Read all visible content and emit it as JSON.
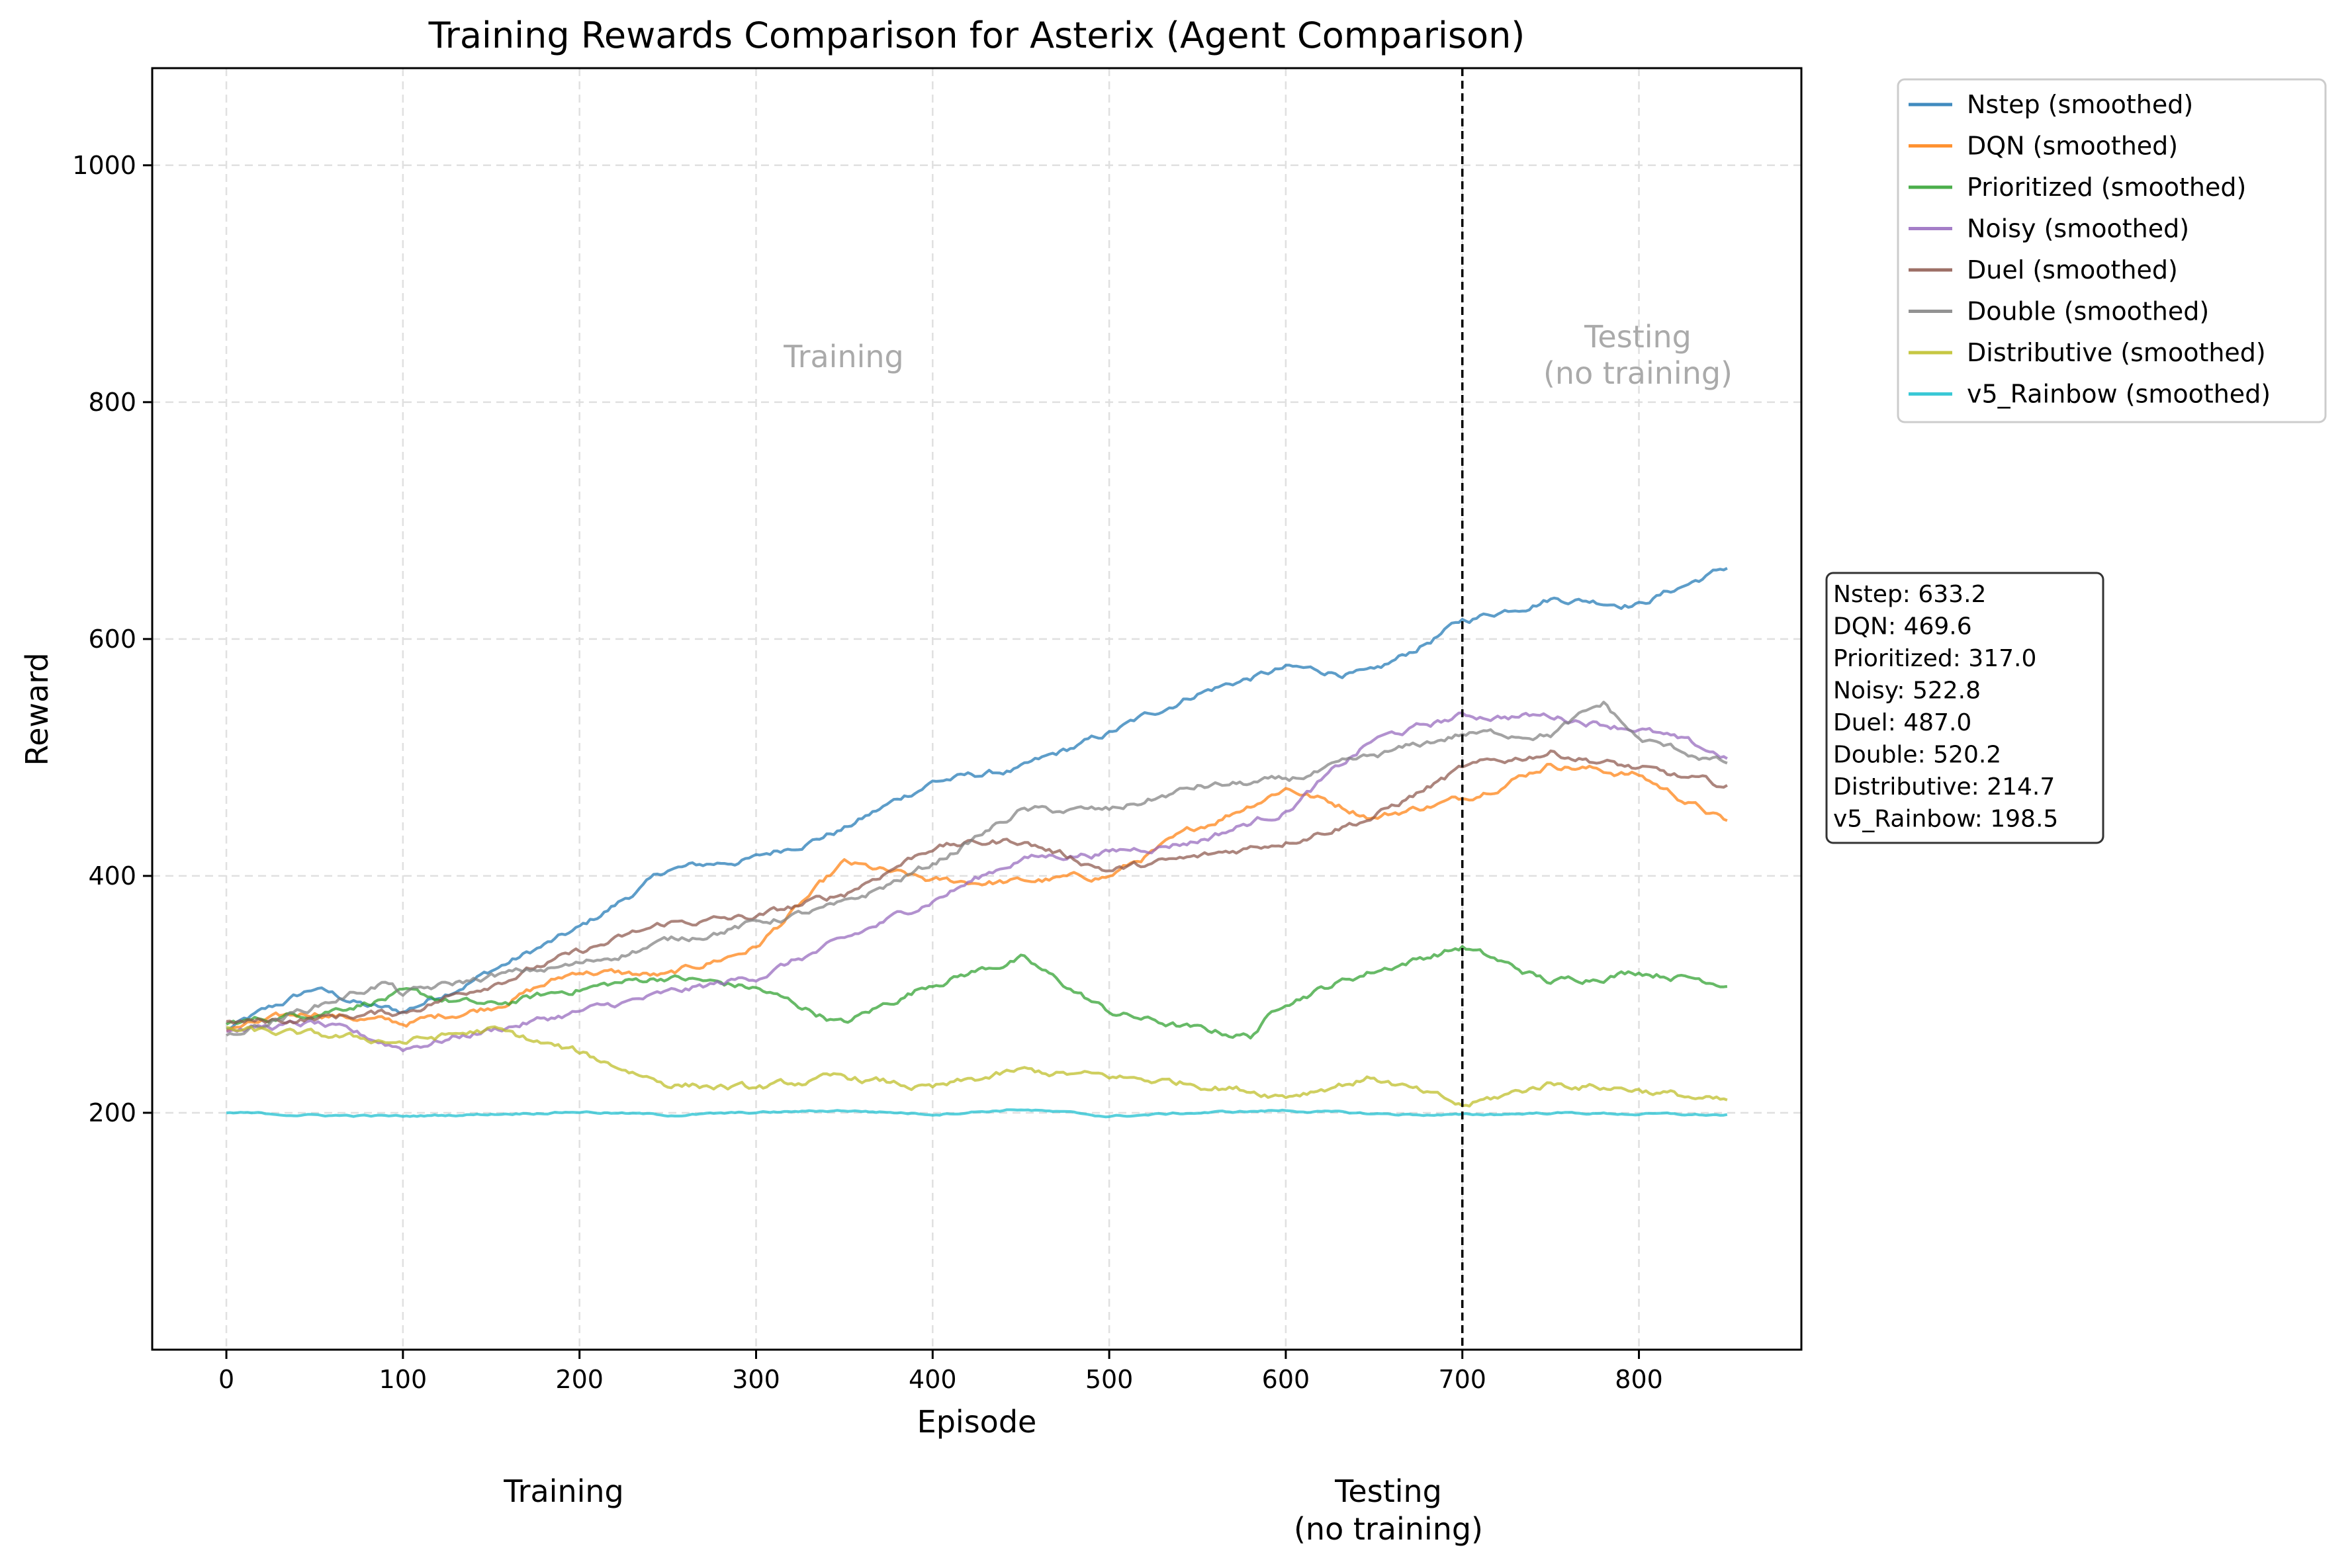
{
  "chart_data": {
    "type": "line",
    "title": "Training Rewards Comparison for Asterix (Agent Comparison)",
    "xlabel": "Episode",
    "ylabel": "Reward",
    "xlim": [
      -42,
      892
    ],
    "ylim": [
      0,
      1082
    ],
    "xticks": [
      0,
      100,
      200,
      300,
      400,
      500,
      600,
      700,
      800
    ],
    "yticks": [
      200,
      400,
      600,
      800,
      1000
    ],
    "grid": true,
    "legend_position": "outside-top-right",
    "divider_x": 700,
    "region_labels": {
      "training": "Training",
      "testing_line1": "Testing",
      "testing_line2": "(no training)"
    },
    "below_axis_labels": {
      "training": "Training",
      "testing_line1": "Testing",
      "testing_line2": "(no training)"
    },
    "series": [
      {
        "name": "Nstep (smoothed)",
        "color": "#1f77b4",
        "x": [
          0,
          50,
          80,
          100,
          150,
          200,
          250,
          300,
          350,
          400,
          450,
          500,
          550,
          600,
          650,
          700,
          750,
          800,
          850
        ],
        "y": [
          270,
          305,
          290,
          285,
          320,
          355,
          405,
          415,
          440,
          480,
          490,
          520,
          555,
          575,
          570,
          615,
          635,
          630,
          660
        ]
      },
      {
        "name": "DQN (smoothed)",
        "color": "#ff7f0e",
        "x": [
          0,
          50,
          100,
          150,
          200,
          250,
          300,
          350,
          400,
          450,
          500,
          550,
          600,
          650,
          700,
          750,
          800,
          850
        ],
        "y": [
          270,
          285,
          275,
          290,
          320,
          315,
          340,
          410,
          395,
          395,
          400,
          440,
          475,
          450,
          465,
          495,
          485,
          445
        ]
      },
      {
        "name": "Prioritized (smoothed)",
        "color": "#2ca02c",
        "x": [
          0,
          50,
          100,
          150,
          200,
          250,
          300,
          350,
          400,
          450,
          500,
          550,
          580,
          600,
          650,
          700,
          750,
          800,
          850
        ],
        "y": [
          275,
          285,
          300,
          290,
          305,
          315,
          305,
          275,
          310,
          330,
          285,
          270,
          265,
          295,
          320,
          340,
          310,
          320,
          310
        ]
      },
      {
        "name": "Noisy (smoothed)",
        "color": "#9467bd",
        "x": [
          0,
          50,
          100,
          150,
          200,
          250,
          300,
          350,
          400,
          450,
          500,
          550,
          600,
          650,
          700,
          750,
          800,
          850
        ],
        "y": [
          270,
          275,
          255,
          270,
          285,
          300,
          315,
          345,
          380,
          415,
          420,
          430,
          455,
          515,
          535,
          535,
          525,
          500
        ]
      },
      {
        "name": "Duel (smoothed)",
        "color": "#8c564b",
        "x": [
          0,
          50,
          100,
          150,
          200,
          250,
          300,
          350,
          400,
          450,
          500,
          550,
          600,
          650,
          700,
          750,
          800,
          850
        ],
        "y": [
          275,
          280,
          285,
          310,
          335,
          360,
          365,
          385,
          425,
          430,
          405,
          415,
          430,
          450,
          490,
          505,
          490,
          475
        ]
      },
      {
        "name": "Double (smoothed)",
        "color": "#7f7f7f",
        "x": [
          0,
          50,
          90,
          100,
          150,
          200,
          250,
          300,
          350,
          400,
          450,
          500,
          550,
          600,
          650,
          700,
          750,
          780,
          800,
          850
        ],
        "y": [
          265,
          290,
          310,
          300,
          315,
          325,
          345,
          360,
          375,
          410,
          455,
          455,
          475,
          480,
          500,
          520,
          520,
          545,
          515,
          495
        ]
      },
      {
        "name": "Distributive (smoothed)",
        "color": "#bcbd22",
        "x": [
          0,
          50,
          100,
          150,
          200,
          250,
          300,
          350,
          400,
          450,
          500,
          550,
          600,
          650,
          700,
          750,
          800,
          850
        ],
        "y": [
          270,
          265,
          260,
          270,
          250,
          225,
          220,
          230,
          220,
          235,
          230,
          225,
          215,
          230,
          205,
          225,
          220,
          208
        ]
      },
      {
        "name": "v5_Rainbow (smoothed)",
        "color": "#17becf",
        "x": [
          0,
          50,
          100,
          150,
          200,
          250,
          300,
          350,
          400,
          450,
          500,
          550,
          600,
          650,
          700,
          750,
          800,
          850
        ],
        "y": [
          200,
          198,
          197,
          199,
          201,
          198,
          200,
          202,
          199,
          203,
          197,
          200,
          202,
          199,
          198,
          200,
          199,
          198
        ]
      }
    ],
    "summary_box": [
      "Nstep: 633.2",
      "DQN: 469.6",
      "Prioritized: 317.0",
      "Noisy: 522.8",
      "Duel: 487.0",
      "Double: 520.2",
      "Distributive: 214.7",
      "v5_Rainbow: 198.5"
    ]
  }
}
